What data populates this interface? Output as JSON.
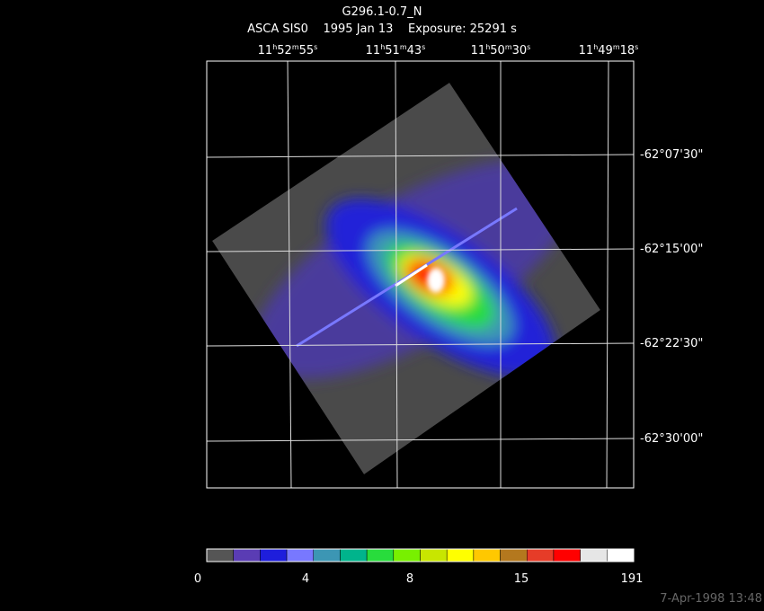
{
  "header": {
    "title": "G296.1-0.7_N",
    "subtitle": "ASCA SIS0    1995 Jan 13    Exposure: 25291 s"
  },
  "ra_labels": [
    [
      "11",
      "h",
      "52",
      "m",
      "55",
      "s"
    ],
    [
      "11",
      "h",
      "51",
      "m",
      "43",
      "s"
    ],
    [
      "11",
      "h",
      "50",
      "m",
      "30",
      "s"
    ],
    [
      "11",
      "h",
      "49",
      "m",
      "18",
      "s"
    ]
  ],
  "dec_labels": [
    "-62°07'30\"",
    "-62°15'00\"",
    "-62°22'30\"",
    "-62°30'00\""
  ],
  "colorbar": {
    "colors": [
      "#555555",
      "#5a3cb4",
      "#1e1edc",
      "#7878ff",
      "#3c96b4",
      "#00b48c",
      "#28dc3c",
      "#78f000",
      "#c8e600",
      "#ffff00",
      "#ffc800",
      "#b4781e",
      "#e63c28",
      "#ff0000",
      "#e6e6e6",
      "#ffffff"
    ],
    "labels": [
      0,
      4,
      8,
      15,
      191
    ]
  },
  "timestamp": "7-Apr-1998 13:48"
}
